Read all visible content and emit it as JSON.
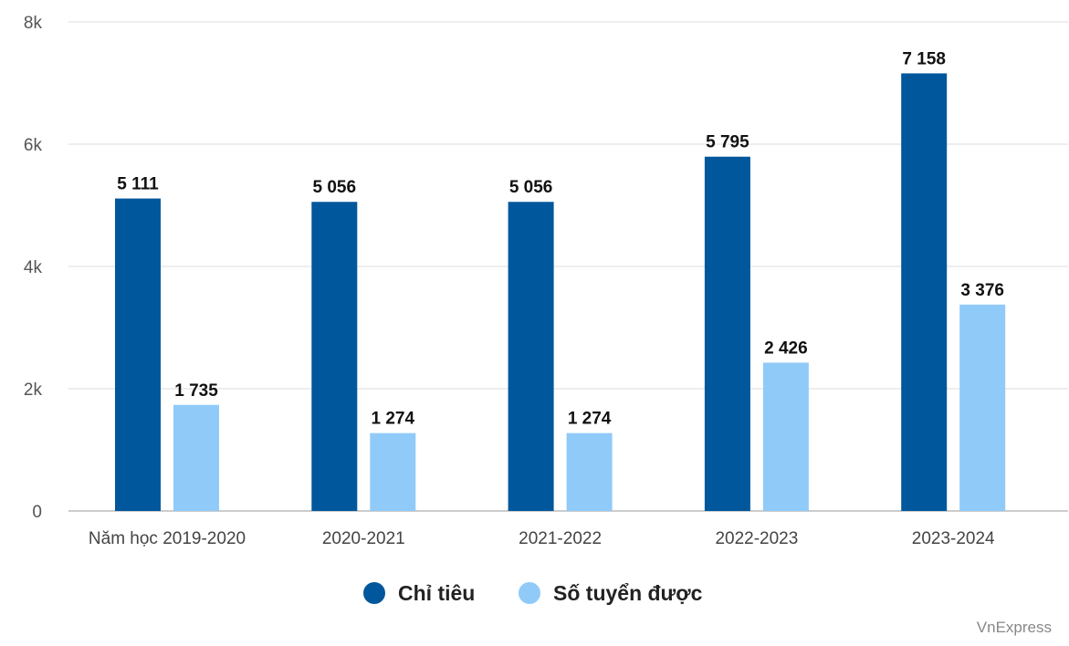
{
  "chart_data": {
    "type": "bar",
    "categories": [
      "Năm học 2019-2020",
      "2020-2021",
      "2021-2022",
      "2022-2023",
      "2023-2024"
    ],
    "series": [
      {
        "name": "Chỉ tiêu",
        "color": "#01579b",
        "values": [
          5111,
          5056,
          5056,
          5795,
          7158
        ],
        "labels": [
          "5 111",
          "5 056",
          "5 056",
          "5 795",
          "7 158"
        ]
      },
      {
        "name": "Số tuyển được",
        "color": "#90caf9",
        "values": [
          1735,
          1274,
          1274,
          2426,
          3376
        ],
        "labels": [
          "1 735",
          "1 274",
          "1 274",
          "2 426",
          "3 376"
        ]
      }
    ],
    "ylim": [
      0,
      8000
    ],
    "yticks": [
      0,
      2000,
      4000,
      6000,
      8000
    ],
    "ytick_labels": [
      "0",
      "2k",
      "4k",
      "6k",
      "8k"
    ],
    "grid": true,
    "legend_position": "bottom-center",
    "title": "",
    "xlabel": "",
    "ylabel": ""
  },
  "credit": "VnExpress"
}
